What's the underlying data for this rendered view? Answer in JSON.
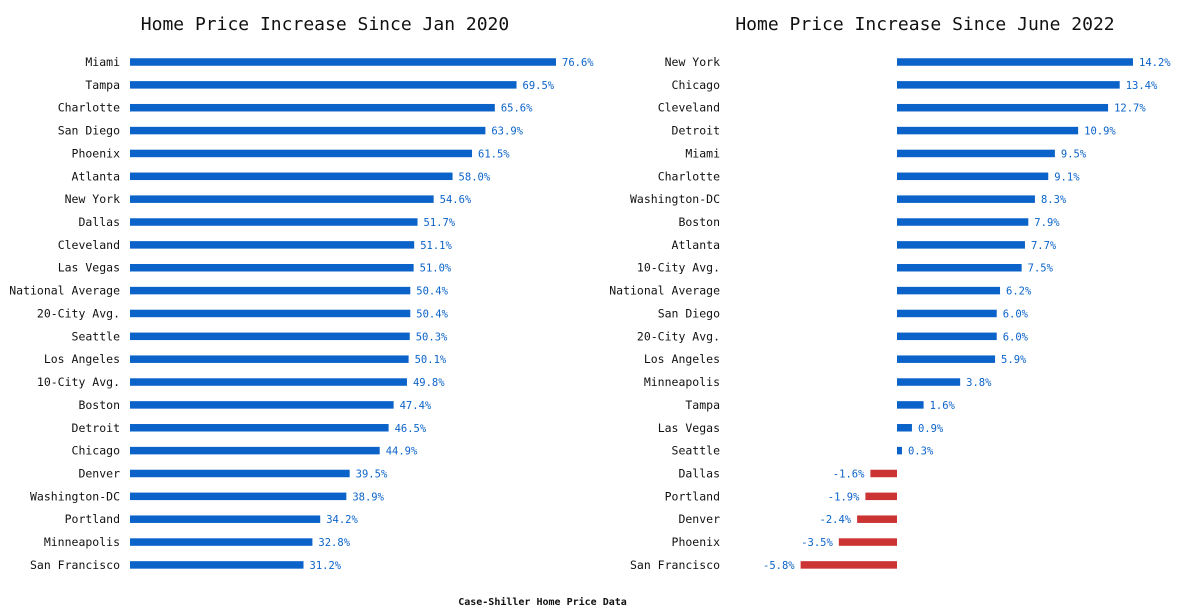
{
  "caption": "Case-Shiller Home Price Data",
  "colors": {
    "positive": "#0b63c9",
    "negative": "#cc3333",
    "text": "#111111"
  },
  "chart_data": [
    {
      "type": "bar",
      "orientation": "horizontal",
      "title": "Home Price Increase Since Jan 2020",
      "xlabel": "",
      "ylabel": "",
      "grid": false,
      "value_suffix": "%",
      "categories": [
        "Miami",
        "Tampa",
        "Charlotte",
        "San Diego",
        "Phoenix",
        "Atlanta",
        "New York",
        "Dallas",
        "Cleveland",
        "Las Vegas",
        "National Average",
        "20-City Avg.",
        "Seattle",
        "Los Angeles",
        "10-City Avg.",
        "Boston",
        "Detroit",
        "Chicago",
        "Denver",
        "Washington-DC",
        "Portland",
        "Minneapolis",
        "San Francisco"
      ],
      "values": [
        76.6,
        69.5,
        65.6,
        63.9,
        61.5,
        58.0,
        54.6,
        51.7,
        51.1,
        51.0,
        50.4,
        50.4,
        50.3,
        50.1,
        49.8,
        47.4,
        46.5,
        44.9,
        39.5,
        38.9,
        34.2,
        32.8,
        31.2
      ],
      "xlim": [
        0,
        76.6
      ]
    },
    {
      "type": "bar",
      "orientation": "horizontal",
      "title": "Home Price Increase Since June 2022",
      "xlabel": "",
      "ylabel": "",
      "grid": false,
      "value_suffix": "%",
      "categories": [
        "New York",
        "Chicago",
        "Cleveland",
        "Detroit",
        "Miami",
        "Charlotte",
        "Washington-DC",
        "Boston",
        "Atlanta",
        "10-City Avg.",
        "National Average",
        "San Diego",
        "20-City Avg.",
        "Los Angeles",
        "Minneapolis",
        "Tampa",
        "Las Vegas",
        "Seattle",
        "Dallas",
        "Portland",
        "Denver",
        "Phoenix",
        "San Francisco"
      ],
      "values": [
        14.2,
        13.4,
        12.7,
        10.9,
        9.5,
        9.1,
        8.3,
        7.9,
        7.7,
        7.5,
        6.2,
        6.0,
        6.0,
        5.9,
        3.8,
        1.6,
        0.9,
        0.3,
        -1.6,
        -1.9,
        -2.4,
        -3.5,
        -5.8
      ],
      "xlim": [
        -5.8,
        14.2
      ]
    }
  ]
}
